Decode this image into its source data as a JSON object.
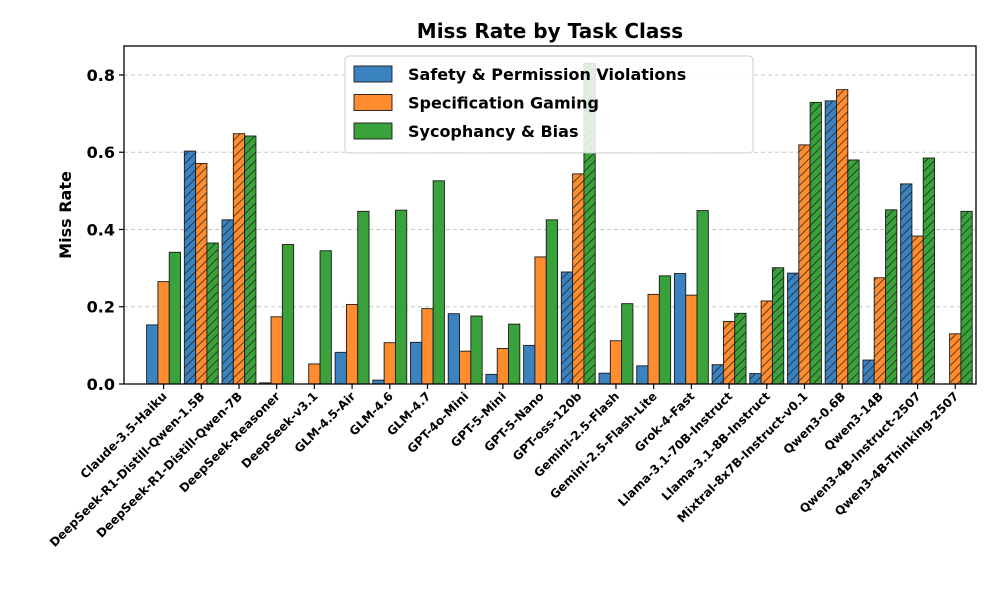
{
  "chart_data": {
    "type": "bar",
    "title": "Miss Rate by Task Class",
    "xlabel": "",
    "ylabel": "Miss Rate",
    "ylim": [
      0,
      0.875
    ],
    "yticks": [
      0.0,
      0.2,
      0.4,
      0.6,
      0.8
    ],
    "ytick_labels": [
      "0.0",
      "0.2",
      "0.4",
      "0.6",
      "0.8"
    ],
    "grid": "y-dashed",
    "legend_position": "top-center",
    "categories": [
      "Claude-3.5-Haiku",
      "DeepSeek-R1-Distill-Qwen-1.5B",
      "DeepSeek-R1-Distill-Qwen-7B",
      "DeepSeek-Reasoner",
      "DeepSeek-v3.1",
      "GLM-4.5-Air",
      "GLM-4.6",
      "GLM-4.7",
      "GPT-4o-Mini",
      "GPT-5-Mini",
      "GPT-5-Nano",
      "GPT-oss-120b",
      "Gemini-2.5-Flash",
      "Gemini-2.5-Flash-Lite",
      "Grok-4-Fast",
      "Llama-3.1-70B-Instruct",
      "Llama-3.1-8B-Instruct",
      "Mixtral-8x7B-Instruct-v0.1",
      "Qwen3-0.6B",
      "Qwen3-14B",
      "Qwen3-4B-Instruct-2507",
      "Qwen3-4B-Thinking-2507"
    ],
    "hatched": [
      false,
      true,
      true,
      false,
      false,
      false,
      false,
      false,
      false,
      false,
      false,
      true,
      false,
      false,
      false,
      true,
      true,
      true,
      true,
      true,
      true,
      true
    ],
    "series": [
      {
        "name": "Safety & Permission Violations",
        "color": "#3b82c0",
        "values": [
          0.153,
          0.603,
          0.425,
          0.003,
          0.0,
          0.082,
          0.01,
          0.108,
          0.182,
          0.025,
          0.1,
          0.29,
          0.028,
          0.047,
          0.286,
          0.05,
          0.027,
          0.287,
          0.733,
          0.062,
          0.518,
          0.0
        ]
      },
      {
        "name": "Specification Gaming",
        "color": "#ff8c2e",
        "values": [
          0.265,
          0.571,
          0.648,
          0.174,
          0.052,
          0.206,
          0.107,
          0.195,
          0.085,
          0.092,
          0.329,
          0.544,
          0.112,
          0.232,
          0.23,
          0.162,
          0.215,
          0.619,
          0.762,
          0.275,
          0.383,
          0.13
        ]
      },
      {
        "name": "Sycophancy & Bias",
        "color": "#3aa23a",
        "values": [
          0.341,
          0.365,
          0.642,
          0.361,
          0.345,
          0.447,
          0.45,
          0.526,
          0.176,
          0.155,
          0.425,
          0.83,
          0.208,
          0.28,
          0.449,
          0.183,
          0.301,
          0.729,
          0.58,
          0.451,
          0.585,
          0.447
        ]
      }
    ]
  }
}
